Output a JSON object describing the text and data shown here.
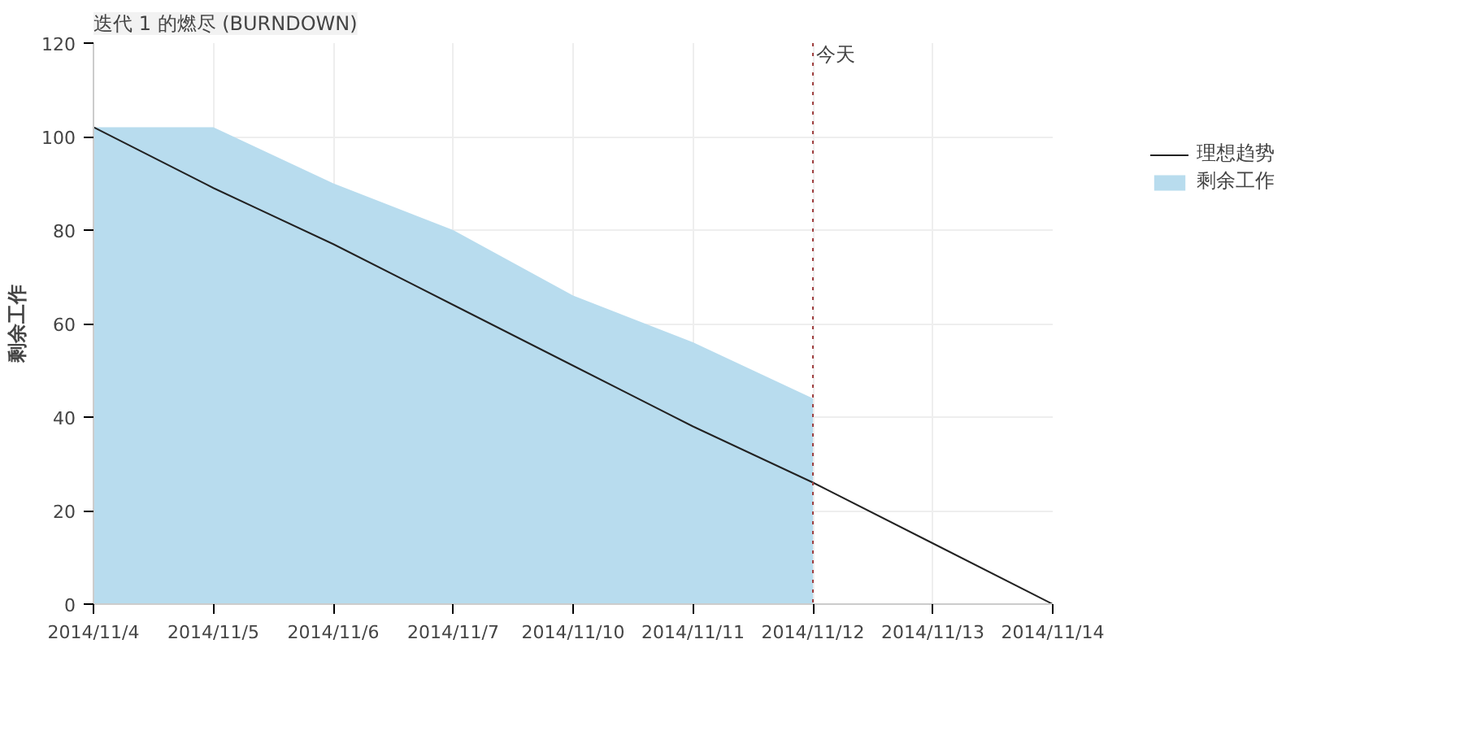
{
  "chart_data": {
    "type": "area",
    "title": "迭代 1 的燃尽 (BURNDOWN)",
    "ylabel": "剩余工作",
    "categories": [
      "2014/11/4",
      "2014/11/5",
      "2014/11/6",
      "2014/11/7",
      "2014/11/10",
      "2014/11/11",
      "2014/11/12",
      "2014/11/13",
      "2014/11/14"
    ],
    "series": [
      {
        "name": "理想趋势",
        "type": "line",
        "color": "#222222",
        "values": [
          102,
          89,
          77,
          64,
          51,
          38,
          26,
          13,
          0
        ]
      },
      {
        "name": "剩余工作",
        "color": "#b8dcee",
        "values": [
          102,
          102,
          90,
          80,
          66,
          56,
          44,
          null,
          null
        ]
      }
    ],
    "ylim": [
      0,
      120
    ],
    "yticks": [
      0,
      20,
      40,
      60,
      80,
      100,
      120
    ],
    "ref_lines": [
      {
        "axis": "x",
        "value": "2014/11/12",
        "label": "今天",
        "color": "#a04040",
        "line_style": "dotted"
      }
    ],
    "grid": true,
    "legend": "top right"
  }
}
